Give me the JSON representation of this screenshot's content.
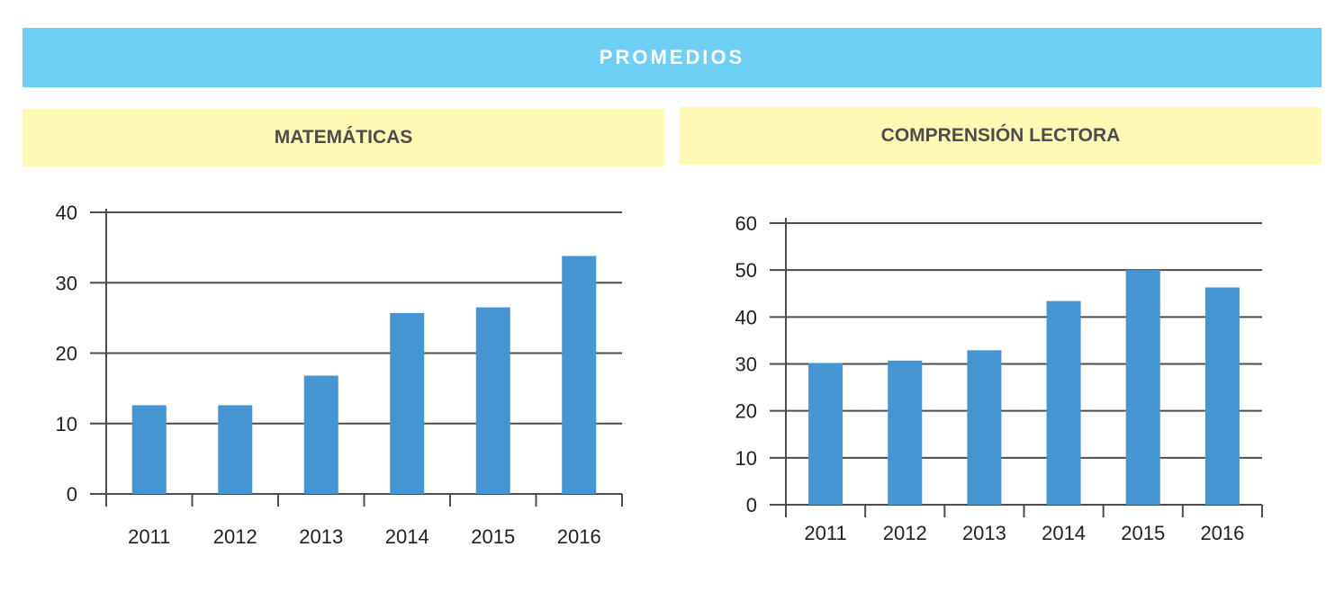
{
  "header": {
    "title": "PROMEDIOS"
  },
  "colors": {
    "banner": "#6dcff6",
    "subheader": "#fef8b3",
    "bar": "#4495d1",
    "axis": "#4d4d4f"
  },
  "chart_data": [
    {
      "type": "bar",
      "title": "MATEMÁTICAS",
      "categories": [
        "2011",
        "2012",
        "2013",
        "2014",
        "2015",
        "2016"
      ],
      "values": [
        12.6,
        12.6,
        16.8,
        25.7,
        26.5,
        33.8
      ],
      "yticks": [
        0,
        10,
        20,
        30,
        40
      ],
      "ylim": [
        0,
        40
      ],
      "grid": true
    },
    {
      "type": "bar",
      "title": "COMPRENSIÓN LECTORA",
      "categories": [
        "2011",
        "2012",
        "2013",
        "2014",
        "2015",
        "2016"
      ],
      "values": [
        30.2,
        30.7,
        32.9,
        43.4,
        50.0,
        46.3
      ],
      "yticks": [
        0,
        10,
        20,
        30,
        40,
        50,
        60
      ],
      "ylim": [
        0,
        60
      ],
      "grid": true
    }
  ]
}
